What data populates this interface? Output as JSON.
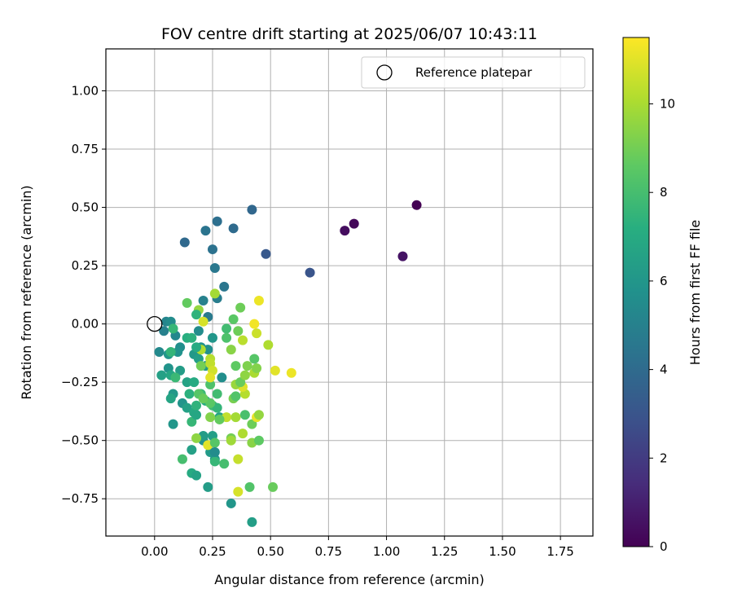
{
  "chart_data": {
    "type": "scatter",
    "title": "FOV centre drift starting at 2025/06/07 10:43:11",
    "xlabel": "Angular distance from reference (arcmin)",
    "ylabel": "Rotation from reference (arcmin)",
    "xlim": [
      -0.21,
      1.89
    ],
    "ylim": [
      -0.91,
      1.18
    ],
    "xticks": [
      0.0,
      0.25,
      0.5,
      0.75,
      1.0,
      1.25,
      1.5,
      1.75
    ],
    "xtick_labels": [
      "0.00",
      "0.25",
      "0.50",
      "0.75",
      "1.00",
      "1.25",
      "1.50",
      "1.75"
    ],
    "yticks": [
      -0.75,
      -0.5,
      -0.25,
      0.0,
      0.25,
      0.5,
      0.75,
      1.0
    ],
    "ytick_labels": [
      "−0.75",
      "−0.50",
      "−0.25",
      "0.00",
      "0.25",
      "0.50",
      "0.75",
      "1.00"
    ],
    "grid": true,
    "legend": {
      "position": "top-right",
      "entries": [
        {
          "label": "Reference platepar",
          "marker": "open-circle"
        }
      ]
    },
    "reference_point": {
      "x": 0.0,
      "y": 0.0
    },
    "colorbar": {
      "label": "Hours from first FF file",
      "colormap": "viridis",
      "range": [
        0,
        11.5
      ],
      "ticks": [
        0,
        2,
        4,
        6,
        8,
        10
      ],
      "tick_labels": [
        "0",
        "2",
        "4",
        "6",
        "8",
        "10"
      ]
    },
    "points": [
      {
        "x": 1.13,
        "y": 0.51,
        "t": 0.0
      },
      {
        "x": 0.86,
        "y": 0.43,
        "t": 0.2
      },
      {
        "x": 0.82,
        "y": 0.4,
        "t": 0.4
      },
      {
        "x": 1.07,
        "y": 0.29,
        "t": 0.6
      },
      {
        "x": 0.67,
        "y": 0.22,
        "t": 3.0
      },
      {
        "x": 0.48,
        "y": 0.3,
        "t": 3.2
      },
      {
        "x": 0.42,
        "y": 0.49,
        "t": 3.8
      },
      {
        "x": 0.27,
        "y": 0.44,
        "t": 4.2
      },
      {
        "x": 0.34,
        "y": 0.41,
        "t": 4.0
      },
      {
        "x": 0.22,
        "y": 0.4,
        "t": 4.4
      },
      {
        "x": 0.13,
        "y": 0.35,
        "t": 3.9
      },
      {
        "x": 0.25,
        "y": 0.32,
        "t": 4.3
      },
      {
        "x": 0.26,
        "y": 0.24,
        "t": 4.6
      },
      {
        "x": 0.3,
        "y": 0.16,
        "t": 4.5
      },
      {
        "x": 0.27,
        "y": 0.11,
        "t": 4.8
      },
      {
        "x": 0.21,
        "y": 0.1,
        "t": 5.0
      },
      {
        "x": 0.23,
        "y": 0.03,
        "t": 4.7
      },
      {
        "x": 0.05,
        "y": 0.01,
        "t": 5.2
      },
      {
        "x": 0.07,
        "y": 0.01,
        "t": 5.5
      },
      {
        "x": 0.04,
        "y": -0.03,
        "t": 5.0
      },
      {
        "x": 0.09,
        "y": -0.05,
        "t": 5.3
      },
      {
        "x": 0.11,
        "y": -0.1,
        "t": 5.6
      },
      {
        "x": 0.1,
        "y": -0.12,
        "t": 5.8
      },
      {
        "x": 0.02,
        "y": -0.12,
        "t": 5.4
      },
      {
        "x": 0.06,
        "y": -0.13,
        "t": 6.0
      },
      {
        "x": 0.06,
        "y": -0.19,
        "t": 5.9
      },
      {
        "x": 0.11,
        "y": -0.2,
        "t": 6.3
      },
      {
        "x": 0.03,
        "y": -0.22,
        "t": 6.5
      },
      {
        "x": 0.07,
        "y": -0.22,
        "t": 6.8
      },
      {
        "x": 0.19,
        "y": -0.03,
        "t": 5.5
      },
      {
        "x": 0.2,
        "y": -0.1,
        "t": 5.8
      },
      {
        "x": 0.17,
        "y": -0.13,
        "t": 6.1
      },
      {
        "x": 0.23,
        "y": -0.11,
        "t": 5.7
      },
      {
        "x": 0.25,
        "y": -0.06,
        "t": 6.0
      },
      {
        "x": 0.19,
        "y": -0.15,
        "t": 6.4
      },
      {
        "x": 0.22,
        "y": -0.18,
        "t": 6.2
      },
      {
        "x": 0.14,
        "y": -0.06,
        "t": 7.2
      },
      {
        "x": 0.14,
        "y": -0.25,
        "t": 6.6
      },
      {
        "x": 0.17,
        "y": -0.25,
        "t": 7.0
      },
      {
        "x": 0.08,
        "y": -0.3,
        "t": 6.1
      },
      {
        "x": 0.07,
        "y": -0.32,
        "t": 6.7
      },
      {
        "x": 0.12,
        "y": -0.34,
        "t": 5.9
      },
      {
        "x": 0.14,
        "y": -0.36,
        "t": 6.5
      },
      {
        "x": 0.15,
        "y": -0.3,
        "t": 7.3
      },
      {
        "x": 0.17,
        "y": -0.38,
        "t": 6.9
      },
      {
        "x": 0.18,
        "y": -0.35,
        "t": 7.4
      },
      {
        "x": 0.08,
        "y": -0.43,
        "t": 6.0
      },
      {
        "x": 0.16,
        "y": -0.42,
        "t": 7.6
      },
      {
        "x": 0.21,
        "y": -0.5,
        "t": 5.8
      },
      {
        "x": 0.16,
        "y": -0.54,
        "t": 6.5
      },
      {
        "x": 0.12,
        "y": -0.58,
        "t": 8.0
      },
      {
        "x": 0.24,
        "y": -0.55,
        "t": 6.2
      },
      {
        "x": 0.26,
        "y": -0.58,
        "t": 6.0
      },
      {
        "x": 0.21,
        "y": -0.48,
        "t": 6.3
      },
      {
        "x": 0.25,
        "y": -0.48,
        "t": 6.4
      },
      {
        "x": 0.28,
        "y": -0.4,
        "t": 6.6
      },
      {
        "x": 0.25,
        "y": -0.35,
        "t": 7.8
      },
      {
        "x": 0.27,
        "y": -0.36,
        "t": 7.5
      },
      {
        "x": 0.22,
        "y": -0.33,
        "t": 7.1
      },
      {
        "x": 0.2,
        "y": -0.3,
        "t": 7.7
      },
      {
        "x": 0.24,
        "y": -0.26,
        "t": 8.2
      },
      {
        "x": 0.27,
        "y": -0.3,
        "t": 7.9
      },
      {
        "x": 0.29,
        "y": -0.23,
        "t": 5.6
      },
      {
        "x": 0.16,
        "y": -0.64,
        "t": 7.0
      },
      {
        "x": 0.18,
        "y": -0.65,
        "t": 6.6
      },
      {
        "x": 0.23,
        "y": -0.7,
        "t": 6.3
      },
      {
        "x": 0.33,
        "y": -0.77,
        "t": 6.0
      },
      {
        "x": 0.42,
        "y": -0.85,
        "t": 6.4
      },
      {
        "x": 0.41,
        "y": -0.7,
        "t": 8.3
      },
      {
        "x": 0.51,
        "y": -0.7,
        "t": 8.8
      },
      {
        "x": 0.36,
        "y": -0.72,
        "t": 10.8
      },
      {
        "x": 0.36,
        "y": -0.58,
        "t": 10.5
      },
      {
        "x": 0.3,
        "y": -0.6,
        "t": 8.0
      },
      {
        "x": 0.26,
        "y": -0.59,
        "t": 7.6
      },
      {
        "x": 0.23,
        "y": -0.52,
        "t": 11.0
      },
      {
        "x": 0.26,
        "y": -0.51,
        "t": 8.4
      },
      {
        "x": 0.33,
        "y": -0.49,
        "t": 9.0
      },
      {
        "x": 0.33,
        "y": -0.5,
        "t": 9.8
      },
      {
        "x": 0.38,
        "y": -0.47,
        "t": 10.1
      },
      {
        "x": 0.42,
        "y": -0.51,
        "t": 9.4
      },
      {
        "x": 0.45,
        "y": -0.5,
        "t": 8.6
      },
      {
        "x": 0.42,
        "y": -0.43,
        "t": 8.9
      },
      {
        "x": 0.44,
        "y": -0.4,
        "t": 11.1
      },
      {
        "x": 0.45,
        "y": -0.39,
        "t": 9.6
      },
      {
        "x": 0.39,
        "y": -0.39,
        "t": 8.1
      },
      {
        "x": 0.35,
        "y": -0.4,
        "t": 9.9
      },
      {
        "x": 0.31,
        "y": -0.4,
        "t": 10.4
      },
      {
        "x": 0.28,
        "y": -0.41,
        "t": 8.7
      },
      {
        "x": 0.24,
        "y": -0.4,
        "t": 9.3
      },
      {
        "x": 0.24,
        "y": -0.34,
        "t": 8.5
      },
      {
        "x": 0.34,
        "y": -0.32,
        "t": 9.1
      },
      {
        "x": 0.35,
        "y": -0.31,
        "t": 8.3
      },
      {
        "x": 0.39,
        "y": -0.3,
        "t": 10.2
      },
      {
        "x": 0.38,
        "y": -0.27,
        "t": 10.9
      },
      {
        "x": 0.35,
        "y": -0.26,
        "t": 9.7
      },
      {
        "x": 0.37,
        "y": -0.25,
        "t": 8.8
      },
      {
        "x": 0.39,
        "y": -0.22,
        "t": 9.5
      },
      {
        "x": 0.4,
        "y": -0.18,
        "t": 9.2
      },
      {
        "x": 0.43,
        "y": -0.21,
        "t": 10.0
      },
      {
        "x": 0.44,
        "y": -0.19,
        "t": 9.3
      },
      {
        "x": 0.43,
        "y": -0.15,
        "t": 8.4
      },
      {
        "x": 0.35,
        "y": -0.18,
        "t": 8.6
      },
      {
        "x": 0.33,
        "y": -0.11,
        "t": 9.4
      },
      {
        "x": 0.36,
        "y": -0.03,
        "t": 8.9
      },
      {
        "x": 0.31,
        "y": -0.02,
        "t": 7.9
      },
      {
        "x": 0.31,
        "y": -0.06,
        "t": 8.2
      },
      {
        "x": 0.38,
        "y": -0.07,
        "t": 10.3
      },
      {
        "x": 0.44,
        "y": -0.04,
        "t": 10.6
      },
      {
        "x": 0.43,
        "y": 0.0,
        "t": 11.3
      },
      {
        "x": 0.45,
        "y": 0.1,
        "t": 11.2
      },
      {
        "x": 0.37,
        "y": 0.07,
        "t": 8.9
      },
      {
        "x": 0.34,
        "y": 0.02,
        "t": 8.5
      },
      {
        "x": 0.49,
        "y": -0.09,
        "t": 10.1
      },
      {
        "x": 0.52,
        "y": -0.2,
        "t": 11.0
      },
      {
        "x": 0.59,
        "y": -0.21,
        "t": 11.2
      },
      {
        "x": 0.14,
        "y": 0.09,
        "t": 8.7
      },
      {
        "x": 0.19,
        "y": 0.06,
        "t": 9.6
      },
      {
        "x": 0.18,
        "y": 0.04,
        "t": 7.4
      },
      {
        "x": 0.21,
        "y": 0.01,
        "t": 10.8
      },
      {
        "x": 0.26,
        "y": 0.13,
        "t": 9.9
      },
      {
        "x": 0.24,
        "y": -0.15,
        "t": 10.2
      },
      {
        "x": 0.24,
        "y": -0.17,
        "t": 10.4
      },
      {
        "x": 0.25,
        "y": -0.2,
        "t": 10.7
      },
      {
        "x": 0.24,
        "y": -0.23,
        "t": 11.0
      },
      {
        "x": 0.2,
        "y": -0.11,
        "t": 10.1
      },
      {
        "x": 0.2,
        "y": -0.18,
        "t": 9.0
      },
      {
        "x": 0.18,
        "y": -0.1,
        "t": 7.0
      },
      {
        "x": 0.09,
        "y": -0.23,
        "t": 7.7
      },
      {
        "x": 0.07,
        "y": -0.12,
        "t": 7.5
      },
      {
        "x": 0.08,
        "y": -0.02,
        "t": 7.6
      },
      {
        "x": 0.16,
        "y": -0.06,
        "t": 7.3
      },
      {
        "x": 0.18,
        "y": -0.49,
        "t": 9.5
      },
      {
        "x": 0.19,
        "y": -0.3,
        "t": 8.4
      },
      {
        "x": 0.21,
        "y": -0.32,
        "t": 8.8
      },
      {
        "x": 0.26,
        "y": -0.55,
        "t": 5.5
      },
      {
        "x": 0.18,
        "y": -0.39,
        "t": 6.8
      }
    ]
  }
}
